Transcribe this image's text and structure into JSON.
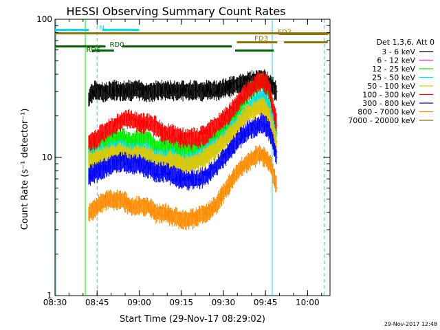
{
  "chart_data": {
    "type": "line",
    "title": "HESSI Observing Summary Count Rates",
    "xlabel": "Start Time (29-Nov-17 08:29:02)",
    "ylabel": "Count Rate (s⁻¹ detector⁻¹)",
    "footer": "29-Nov-2017 12:48",
    "y_scale": "log",
    "ylim": [
      1,
      100
    ],
    "xlim_minutes": [
      8.5,
      10.1333
    ],
    "x_ticks": [
      {
        "label": "08:30",
        "t": 8.5
      },
      {
        "label": "08:45",
        "t": 8.75
      },
      {
        "label": "09:00",
        "t": 9.0
      },
      {
        "label": "09:15",
        "t": 9.25
      },
      {
        "label": "09:30",
        "t": 9.5
      },
      {
        "label": "09:45",
        "t": 9.75
      },
      {
        "label": "10:00",
        "t": 10.0
      }
    ],
    "y_ticks": [
      {
        "label": "1",
        "v": 1
      },
      {
        "label": "10",
        "v": 10
      },
      {
        "label": "100",
        "v": 100
      }
    ],
    "legend": {
      "header": "Det 1,3,6, Att 0",
      "placement": "right"
    },
    "series": [
      {
        "name": "3 - 6 keV",
        "color": "#000000",
        "points": [
          [
            8.7,
            27
          ],
          [
            8.72,
            30
          ],
          [
            8.75,
            31
          ],
          [
            8.8,
            30
          ],
          [
            8.85,
            31
          ],
          [
            8.9,
            31
          ],
          [
            8.95,
            31
          ],
          [
            9.0,
            31
          ],
          [
            9.05,
            30
          ],
          [
            9.1,
            31
          ],
          [
            9.15,
            31
          ],
          [
            9.2,
            31
          ],
          [
            9.25,
            31
          ],
          [
            9.3,
            31
          ],
          [
            9.35,
            31
          ],
          [
            9.4,
            31
          ],
          [
            9.45,
            31
          ],
          [
            9.5,
            32
          ],
          [
            9.55,
            33
          ],
          [
            9.6,
            35
          ],
          [
            9.65,
            36
          ],
          [
            9.7,
            37
          ],
          [
            9.73,
            38
          ],
          [
            9.76,
            36
          ],
          [
            9.78,
            34
          ],
          [
            9.8,
            32
          ],
          [
            9.82,
            30
          ]
        ]
      },
      {
        "name": "6 - 12 keV",
        "color": "#e020e0",
        "points": [
          [
            9.72,
            23
          ],
          [
            9.74,
            25
          ],
          [
            9.76,
            24
          ],
          [
            9.78,
            20
          ],
          [
            9.8,
            14
          ],
          [
            9.82,
            11
          ]
        ]
      },
      {
        "name": "12 - 25 keV",
        "color": "#00ee00",
        "points": [
          [
            8.7,
            11
          ],
          [
            8.75,
            12
          ],
          [
            8.8,
            13
          ],
          [
            8.85,
            14
          ],
          [
            8.9,
            14
          ],
          [
            8.95,
            13
          ],
          [
            9.0,
            14
          ],
          [
            9.05,
            14
          ],
          [
            9.1,
            12
          ],
          [
            9.15,
            12
          ],
          [
            9.2,
            12
          ],
          [
            9.25,
            11.5
          ],
          [
            9.3,
            11.5
          ],
          [
            9.35,
            12
          ],
          [
            9.4,
            13
          ],
          [
            9.45,
            14
          ],
          [
            9.5,
            16
          ],
          [
            9.55,
            19
          ],
          [
            9.6,
            24
          ],
          [
            9.65,
            30
          ],
          [
            9.7,
            34
          ],
          [
            9.73,
            36
          ],
          [
            9.76,
            33
          ],
          [
            9.78,
            28
          ],
          [
            9.8,
            20
          ],
          [
            9.82,
            15
          ]
        ]
      },
      {
        "name": "25 - 50 keV",
        "color": "#00e0e0",
        "points": [
          [
            8.7,
            10
          ],
          [
            8.75,
            10.5
          ],
          [
            8.8,
            11
          ],
          [
            8.85,
            11.5
          ],
          [
            8.9,
            11.5
          ],
          [
            8.95,
            11
          ],
          [
            9.0,
            11
          ],
          [
            9.05,
            11
          ],
          [
            9.1,
            10
          ],
          [
            9.15,
            10
          ],
          [
            9.2,
            10
          ],
          [
            9.25,
            9.5
          ],
          [
            9.3,
            9.5
          ],
          [
            9.35,
            10
          ],
          [
            9.4,
            11
          ],
          [
            9.45,
            12
          ],
          [
            9.5,
            14
          ],
          [
            9.55,
            16
          ],
          [
            9.6,
            19
          ],
          [
            9.65,
            23
          ],
          [
            9.7,
            26
          ],
          [
            9.73,
            27
          ],
          [
            9.76,
            25
          ],
          [
            9.78,
            22
          ],
          [
            9.8,
            17
          ],
          [
            9.82,
            13
          ]
        ]
      },
      {
        "name": "50 - 100 keV",
        "color": "#e0c800",
        "points": [
          [
            8.7,
            9.5
          ],
          [
            8.75,
            10
          ],
          [
            8.8,
            10.5
          ],
          [
            8.85,
            11
          ],
          [
            8.9,
            11
          ],
          [
            8.95,
            10.5
          ],
          [
            9.0,
            10.5
          ],
          [
            9.05,
            10.5
          ],
          [
            9.1,
            9.5
          ],
          [
            9.15,
            9.5
          ],
          [
            9.2,
            9.5
          ],
          [
            9.25,
            9
          ],
          [
            9.3,
            9
          ],
          [
            9.35,
            9.5
          ],
          [
            9.4,
            10.5
          ],
          [
            9.45,
            11.5
          ],
          [
            9.5,
            13
          ],
          [
            9.55,
            15
          ],
          [
            9.6,
            18
          ],
          [
            9.65,
            21
          ],
          [
            9.7,
            23
          ],
          [
            9.73,
            24
          ],
          [
            9.76,
            22
          ],
          [
            9.78,
            19
          ],
          [
            9.8,
            15
          ],
          [
            9.82,
            12
          ]
        ]
      },
      {
        "name": "100 - 300 keV",
        "color": "#ff0000",
        "points": [
          [
            8.7,
            13
          ],
          [
            8.75,
            14
          ],
          [
            8.8,
            16
          ],
          [
            8.85,
            17
          ],
          [
            8.9,
            19
          ],
          [
            8.95,
            19
          ],
          [
            9.0,
            18
          ],
          [
            9.05,
            18
          ],
          [
            9.1,
            17
          ],
          [
            9.15,
            15
          ],
          [
            9.2,
            15
          ],
          [
            9.25,
            14
          ],
          [
            9.3,
            14
          ],
          [
            9.35,
            14
          ],
          [
            9.4,
            15
          ],
          [
            9.45,
            17
          ],
          [
            9.5,
            19
          ],
          [
            9.55,
            22
          ],
          [
            9.6,
            27
          ],
          [
            9.65,
            31
          ],
          [
            9.7,
            35
          ],
          [
            9.73,
            36
          ],
          [
            9.76,
            34
          ],
          [
            9.78,
            29
          ],
          [
            9.8,
            22
          ],
          [
            9.82,
            17
          ]
        ]
      },
      {
        "name": "300 - 800 keV",
        "color": "#0000ff",
        "points": [
          [
            8.7,
            7.5
          ],
          [
            8.75,
            8
          ],
          [
            8.8,
            8.5
          ],
          [
            8.85,
            9
          ],
          [
            8.9,
            9.5
          ],
          [
            8.95,
            9
          ],
          [
            9.0,
            9
          ],
          [
            9.05,
            8.5
          ],
          [
            9.1,
            8
          ],
          [
            9.15,
            8
          ],
          [
            9.2,
            7.5
          ],
          [
            9.25,
            7
          ],
          [
            9.3,
            7
          ],
          [
            9.35,
            7
          ],
          [
            9.4,
            7.5
          ],
          [
            9.45,
            8.5
          ],
          [
            9.5,
            10
          ],
          [
            9.55,
            12
          ],
          [
            9.6,
            14
          ],
          [
            9.65,
            16
          ],
          [
            9.7,
            17
          ],
          [
            9.73,
            18
          ],
          [
            9.76,
            17
          ],
          [
            9.78,
            15
          ],
          [
            9.8,
            12
          ],
          [
            9.82,
            10
          ]
        ]
      },
      {
        "name": "800 - 7000 keV",
        "color": "#ff8c00",
        "points": [
          [
            8.7,
            4
          ],
          [
            8.75,
            4.5
          ],
          [
            8.8,
            5
          ],
          [
            8.85,
            5
          ],
          [
            8.9,
            5
          ],
          [
            8.95,
            4.5
          ],
          [
            9.0,
            4.5
          ],
          [
            9.05,
            4.5
          ],
          [
            9.1,
            4
          ],
          [
            9.15,
            4
          ],
          [
            9.2,
            3.8
          ],
          [
            9.25,
            3.6
          ],
          [
            9.3,
            3.6
          ],
          [
            9.35,
            3.8
          ],
          [
            9.4,
            4
          ],
          [
            9.45,
            4.5
          ],
          [
            9.5,
            5.5
          ],
          [
            9.55,
            7
          ],
          [
            9.6,
            8.5
          ],
          [
            9.65,
            9.5
          ],
          [
            9.7,
            10.5
          ],
          [
            9.73,
            10.5
          ],
          [
            9.76,
            10
          ],
          [
            9.78,
            9
          ],
          [
            9.8,
            7.5
          ],
          [
            9.82,
            6
          ]
        ]
      },
      {
        "name": "7000 - 20000 keV",
        "color": "#8b7500",
        "points": []
      }
    ],
    "annotations": {
      "boxes": [
        {
          "label": "N",
          "color": "#00e0e0",
          "segments": [
            [
              8.5,
              8.7
            ],
            [
              8.78,
              9.0
            ]
          ]
        },
        {
          "label": "FD2",
          "color": "#8b7500",
          "segments": [
            [
              9.83,
              10.12
            ]
          ]
        },
        {
          "label": "FD3",
          "color": "#8b7500",
          "segments": [
            [
              9.58,
              9.82
            ],
            [
              9.86,
              10.12
            ]
          ]
        },
        {
          "label": "RD0",
          "color": "#006400",
          "segments": [
            [
              8.5,
              8.8
            ],
            [
              8.9,
              9.55
            ]
          ]
        },
        {
          "label": "RD6",
          "color": "#006400",
          "segments": [
            [
              8.72,
              8.85
            ],
            [
              9.57,
              9.8
            ]
          ]
        }
      ],
      "vlines": [
        {
          "t": 8.505,
          "color": "#00e0e0",
          "style": "solid"
        },
        {
          "t": 8.75,
          "color": "#00e0e0",
          "style": "dash"
        },
        {
          "t": 9.79,
          "color": "#00e0e0",
          "style": "solid"
        },
        {
          "t": 10.1,
          "color": "#00e0e0",
          "style": "dash"
        },
        {
          "t": 8.68,
          "color": "#00ee00",
          "style": "solid"
        }
      ]
    }
  }
}
